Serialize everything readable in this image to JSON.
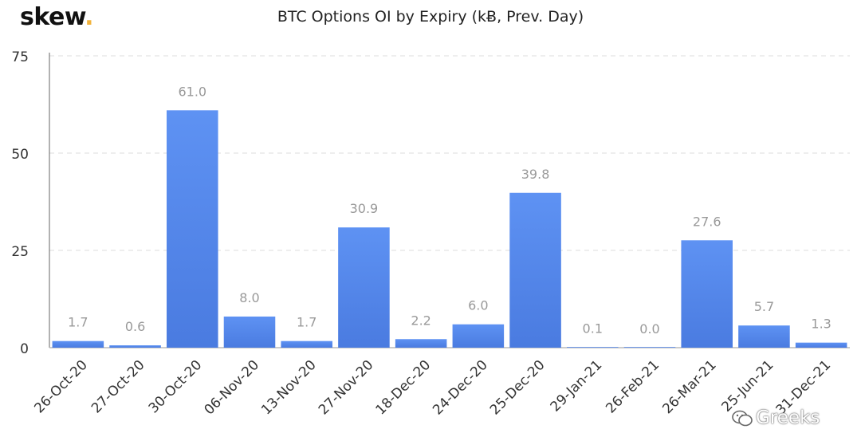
{
  "brand": {
    "name": "skew",
    "dot": "."
  },
  "watermark": {
    "text": "Greeks"
  },
  "colors": {
    "bar": "#5b8def",
    "bar_dark": "#4a7be0",
    "label": "#999999",
    "axis": "#333333",
    "grid": "#dddddd",
    "brand_dot": "#f2b33d"
  },
  "chart_data": {
    "type": "bar",
    "title": "BTC Options OI by Expiry (kɃ, Prev. Day)",
    "xlabel": "",
    "ylabel": "",
    "ylim": [
      0,
      75
    ],
    "yticks": [
      0,
      25,
      50,
      75
    ],
    "grid": true,
    "categories": [
      "26-Oct-20",
      "27-Oct-20",
      "30-Oct-20",
      "06-Nov-20",
      "13-Nov-20",
      "27-Nov-20",
      "18-Dec-20",
      "24-Dec-20",
      "25-Dec-20",
      "29-Jan-21",
      "26-Feb-21",
      "26-Mar-21",
      "25-Jun-21",
      "31-Dec-21"
    ],
    "values": [
      1.7,
      0.6,
      61.0,
      8.0,
      1.7,
      30.9,
      2.2,
      6.0,
      39.8,
      0.1,
      0.0,
      27.6,
      5.7,
      1.3
    ],
    "data_labels": [
      "1.7",
      "0.6",
      "61.0",
      "8.0",
      "1.7",
      "30.9",
      "2.2",
      "6.0",
      "39.8",
      "0.1",
      "0.0",
      "27.6",
      "5.7",
      "1.3"
    ]
  }
}
